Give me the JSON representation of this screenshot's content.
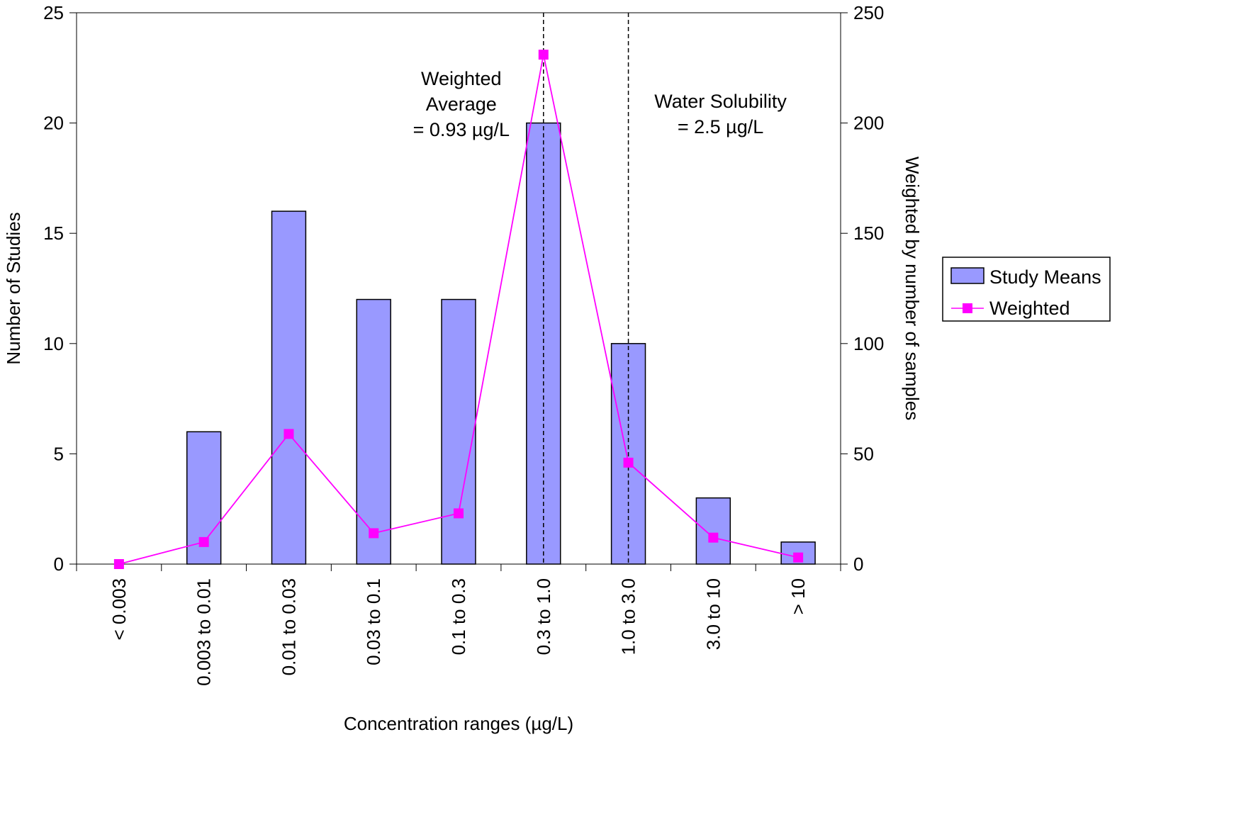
{
  "chart_data": {
    "type": "bar",
    "title": "",
    "xlabel": "Concentration ranges (µg/L)",
    "ylabel": "Number of Studies",
    "y2label": "Weighted by number of samples",
    "categories": [
      "< 0.003",
      "0.003 to 0.01",
      "0.01 to 0.03",
      "0.03 to 0.1",
      "0.1 to 0.3",
      "0.3 to 1.0",
      "1.0 to 3.0",
      "3.0 to 10",
      "> 10"
    ],
    "series": [
      {
        "name": "Study Means",
        "type": "bar",
        "axis": "left",
        "color": "#9999ff",
        "values": [
          0,
          6,
          16,
          12,
          12,
          20,
          10,
          3,
          1
        ]
      },
      {
        "name": "Weighted",
        "type": "line",
        "axis": "right",
        "color": "#ff00ff",
        "marker": "square",
        "values": [
          0,
          10,
          59,
          14,
          23,
          231,
          46,
          12,
          3
        ]
      }
    ],
    "ylim": [
      0,
      25
    ],
    "yticks": [
      "0",
      "5",
      "10",
      "15",
      "20",
      "25"
    ],
    "y2lim": [
      0,
      250
    ],
    "y2ticks": [
      "0",
      "50",
      "100",
      "150",
      "200",
      "250"
    ],
    "grid": false,
    "legend": "right",
    "reference_lines": [
      {
        "at_category": "0.3 to 1.0",
        "style": "dashed",
        "lines": [
          "Weighted",
          "Average",
          "= 0.93 µg/L"
        ]
      },
      {
        "at_category": "1.0 to 3.0",
        "style": "dashed",
        "lines": [
          "Water Solubility",
          "= 2.5 µg/L"
        ]
      }
    ]
  }
}
